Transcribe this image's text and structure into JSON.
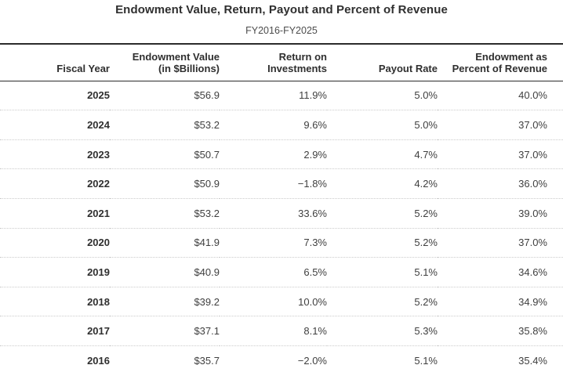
{
  "chart_data": {
    "type": "table",
    "title": "Endowment Value, Return, Payout and Percent of Revenue",
    "subtitle": "FY2016-FY2025",
    "columns": [
      "Fiscal Year",
      "Endowment Value\n(in $Billions)",
      "Return on\nInvestments",
      "Payout Rate",
      "Endowment as\nPercent of Revenue"
    ],
    "rows": [
      [
        "2025",
        "$56.9",
        "11.9%",
        "5.0%",
        "40.0%"
      ],
      [
        "2024",
        "$53.2",
        "9.6%",
        "5.0%",
        "37.0%"
      ],
      [
        "2023",
        "$50.7",
        "2.9%",
        "4.7%",
        "37.0%"
      ],
      [
        "2022",
        "$50.9",
        "−1.8%",
        "4.2%",
        "36.0%"
      ],
      [
        "2021",
        "$53.2",
        "33.6%",
        "5.2%",
        "39.0%"
      ],
      [
        "2020",
        "$41.9",
        "7.3%",
        "5.2%",
        "37.0%"
      ],
      [
        "2019",
        "$40.9",
        "6.5%",
        "5.1%",
        "34.6%"
      ],
      [
        "2018",
        "$39.2",
        "10.0%",
        "5.2%",
        "34.9%"
      ],
      [
        "2017",
        "$37.1",
        "8.1%",
        "5.3%",
        "35.8%"
      ],
      [
        "2016",
        "$35.7",
        "−2.0%",
        "5.1%",
        "35.4%"
      ]
    ],
    "layout": {
      "title_align": "center",
      "cell_align": "right",
      "first_column_bold": true,
      "row_divider_style": "dotted"
    }
  },
  "colors": {
    "background": "#ffffff",
    "title_text": "#2f2f2f",
    "body_text": "#3f3f3f",
    "header_rule": "#2b2b2b",
    "row_divider": "#cbcbcb"
  }
}
